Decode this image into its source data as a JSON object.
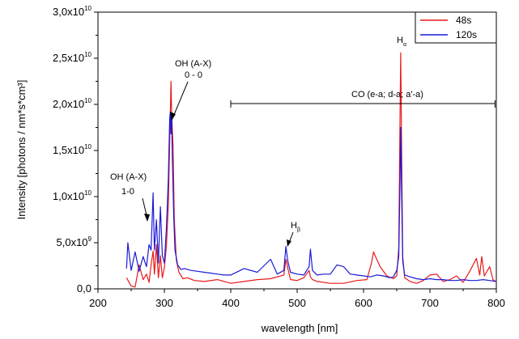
{
  "chart_data": {
    "type": "line",
    "xlabel": "wavelength [nm]",
    "ylabel": "Intensity [photons / nm*s*cm³]",
    "xlim": [
      200,
      800
    ],
    "ylim": [
      0,
      30000000000.0
    ],
    "x_ticks": [
      200,
      300,
      400,
      500,
      600,
      700,
      800
    ],
    "y_ticks": [
      {
        "value": 0,
        "mantissa": "0,0",
        "exp": ""
      },
      {
        "value": 5000000000.0,
        "mantissa": "5,0x10",
        "exp": "9"
      },
      {
        "value": 10000000000.0,
        "mantissa": "1,0x10",
        "exp": "10"
      },
      {
        "value": 15000000000.0,
        "mantissa": "1,5x10",
        "exp": "10"
      },
      {
        "value": 20000000000.0,
        "mantissa": "2,0x10",
        "exp": "10"
      },
      {
        "value": 25000000000.0,
        "mantissa": "2,5x10",
        "exp": "10"
      },
      {
        "value": 30000000000.0,
        "mantissa": "3,0x10",
        "exp": "10"
      }
    ],
    "legend_position": "top-right",
    "series": [
      {
        "name": "48s",
        "color": "#e8191b",
        "x": [
          243,
          250,
          256,
          262,
          268,
          273,
          277,
          280,
          283,
          285,
          288,
          291,
          294,
          297,
          300,
          303,
          306,
          308,
          309,
          310,
          311,
          313,
          315,
          318,
          322,
          328,
          335,
          345,
          360,
          380,
          400,
          420,
          440,
          460,
          480,
          483,
          486,
          490,
          500,
          510,
          518,
          520,
          523,
          530,
          550,
          570,
          590,
          605,
          612,
          615,
          618,
          625,
          635,
          645,
          650,
          653,
          655,
          656,
          657,
          659,
          662,
          670,
          680,
          690,
          700,
          710,
          720,
          730,
          740,
          750,
          760,
          770,
          775,
          778,
          782,
          790,
          795,
          799
        ],
        "y": [
          1200000000.0,
          300000000.0,
          200000000.0,
          2600000000.0,
          1000000000.0,
          1600000000.0,
          700000000.0,
          2600000000.0,
          4100000000.0,
          1600000000.0,
          4800000000.0,
          1200000000.0,
          3600000000.0,
          1200000000.0,
          2300000000.0,
          4600000000.0,
          9000000000.0,
          16000000000.0,
          19200000000.0,
          22500000000.0,
          19000000000.0,
          15500000000.0,
          7500000000.0,
          3100000000.0,
          1800000000.0,
          1100000000.0,
          1200000000.0,
          900000000.0,
          800000000.0,
          1000000000.0,
          600000000.0,
          800000000.0,
          1000000000.0,
          1100000000.0,
          1500000000.0,
          3200000000.0,
          2200000000.0,
          1000000000.0,
          900000000.0,
          1200000000.0,
          2000000000.0,
          1300000000.0,
          1000000000.0,
          800000000.0,
          600000000.0,
          600000000.0,
          900000000.0,
          1000000000.0,
          2800000000.0,
          4000000000.0,
          3500000000.0,
          2400000000.0,
          1400000000.0,
          1100000000.0,
          1400000000.0,
          4500000000.0,
          19000000000.0,
          25600000000.0,
          18000000000.0,
          3500000000.0,
          1200000000.0,
          800000000.0,
          600000000.0,
          900000000.0,
          1500000000.0,
          1600000000.0,
          800000000.0,
          1000000000.0,
          1400000000.0,
          700000000.0,
          1900000000.0,
          3300000000.0,
          1500000000.0,
          3500000000.0,
          1400000000.0,
          2400000000.0,
          1000000000.0,
          800000000.0
        ]
      },
      {
        "name": "120s",
        "color": "#1a1ad8",
        "x": [
          243,
          245,
          250,
          256,
          262,
          268,
          273,
          277,
          280,
          283,
          285,
          288,
          291,
          294,
          297,
          300,
          303,
          306,
          308,
          309,
          310,
          311,
          312,
          314,
          316,
          320,
          325,
          330,
          340,
          350,
          360,
          370,
          380,
          390,
          400,
          420,
          440,
          460,
          470,
          480,
          483,
          486,
          490,
          500,
          510,
          518,
          520,
          523,
          530,
          540,
          550,
          560,
          570,
          580,
          590,
          600,
          610,
          620,
          630,
          640,
          645,
          650,
          653,
          655,
          656,
          657,
          659,
          662,
          670,
          680,
          690,
          700,
          710,
          720,
          730,
          740,
          750,
          760,
          770,
          780,
          790,
          799
        ],
        "y": [
          2200000000.0,
          5000000000.0,
          2000000000.0,
          4000000000.0,
          1900000000.0,
          3500000000.0,
          2400000000.0,
          4800000000.0,
          4200000000.0,
          10400000000.0,
          4200000000.0,
          7500000000.0,
          2800000000.0,
          8900000000.0,
          3600000000.0,
          2800000000.0,
          6500000000.0,
          12000000000.0,
          18500000000.0,
          19200000000.0,
          16800000000.0,
          18800000000.0,
          14500000000.0,
          8000000000.0,
          4200000000.0,
          2600000000.0,
          2100000000.0,
          2200000000.0,
          2000000000.0,
          1900000000.0,
          1800000000.0,
          1700000000.0,
          1600000000.0,
          1500000000.0,
          1500000000.0,
          2200000000.0,
          1800000000.0,
          3200000000.0,
          1600000000.0,
          2000000000.0,
          4600000000.0,
          3000000000.0,
          1800000000.0,
          1600000000.0,
          1500000000.0,
          2400000000.0,
          4300000000.0,
          2000000000.0,
          1500000000.0,
          1600000000.0,
          1600000000.0,
          2600000000.0,
          2400000000.0,
          1600000000.0,
          1500000000.0,
          1400000000.0,
          1300000000.0,
          1500000000.0,
          1400000000.0,
          1200000000.0,
          1300000000.0,
          2000000000.0,
          3500000000.0,
          12000000000.0,
          17500000000.0,
          12000000000.0,
          3000000000.0,
          1500000000.0,
          1300000000.0,
          1100000000.0,
          1000000000.0,
          1100000000.0,
          1000000000.0,
          1000000000.0,
          900000000.0,
          900000000.0,
          1000000000.0,
          900000000.0,
          900000000.0,
          1000000000.0,
          900000000.0,
          800000000.0
        ]
      }
    ],
    "annotations": {
      "oh10_line1": "OH (A-X)",
      "oh10_line2": "1-0",
      "oh00_line1": "OH (A-X)",
      "oh00_line2": "0 - 0",
      "hbeta_base": "H",
      "hbeta_sub": "β",
      "halpha_base": "H",
      "halpha_sub": "α",
      "co_label": "CO (e-a; d-a; a'-a)",
      "co_range": [
        400,
        798
      ]
    }
  }
}
